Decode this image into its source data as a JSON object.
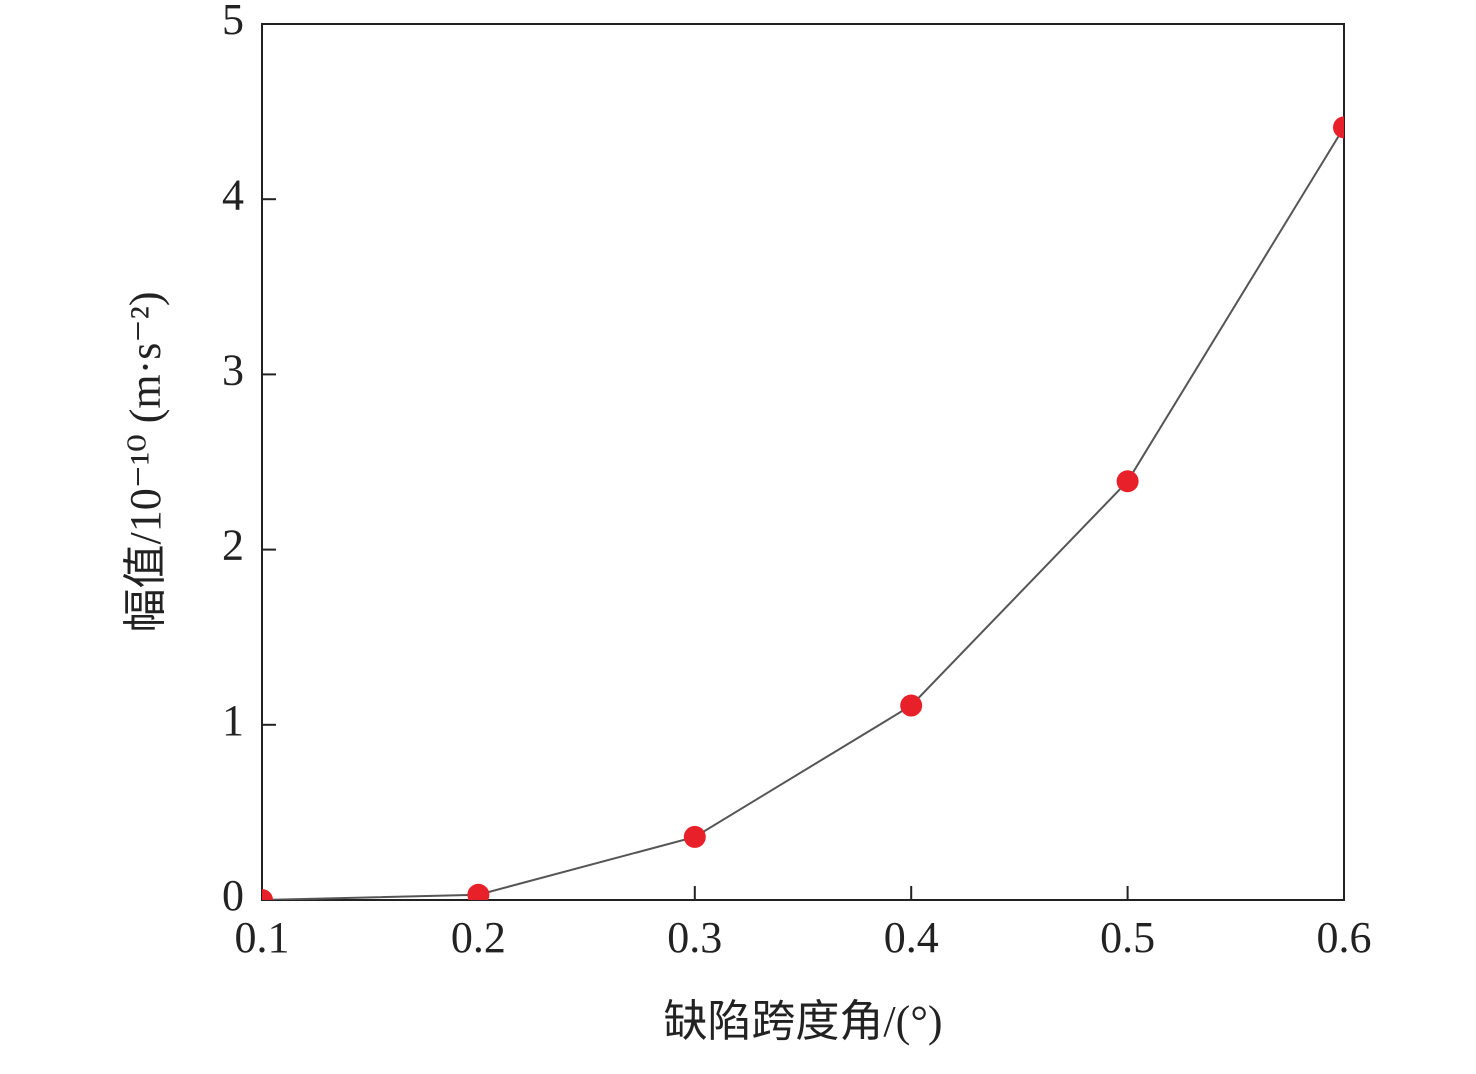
{
  "chart_data": {
    "type": "line",
    "x_label": "缺陷跨度角/(°)",
    "y_label": "幅值/10⁻¹⁰ (m·s⁻²)",
    "x": [
      0.1,
      0.2,
      0.3,
      0.4,
      0.5,
      0.6
    ],
    "series": [
      {
        "color": "#e8202a",
        "line_color": "#555555",
        "values": [
          0,
          0.03,
          0.36,
          1.11,
          2.39,
          4.41
        ]
      }
    ],
    "xlim": [
      0.1,
      0.6
    ],
    "xticks": [
      0.1,
      0.2,
      0.3,
      0.4,
      0.5,
      0.6
    ],
    "ylim": [
      0,
      5
    ],
    "yticks": [
      0,
      1,
      2,
      3,
      4,
      5
    ],
    "grid": false
  }
}
